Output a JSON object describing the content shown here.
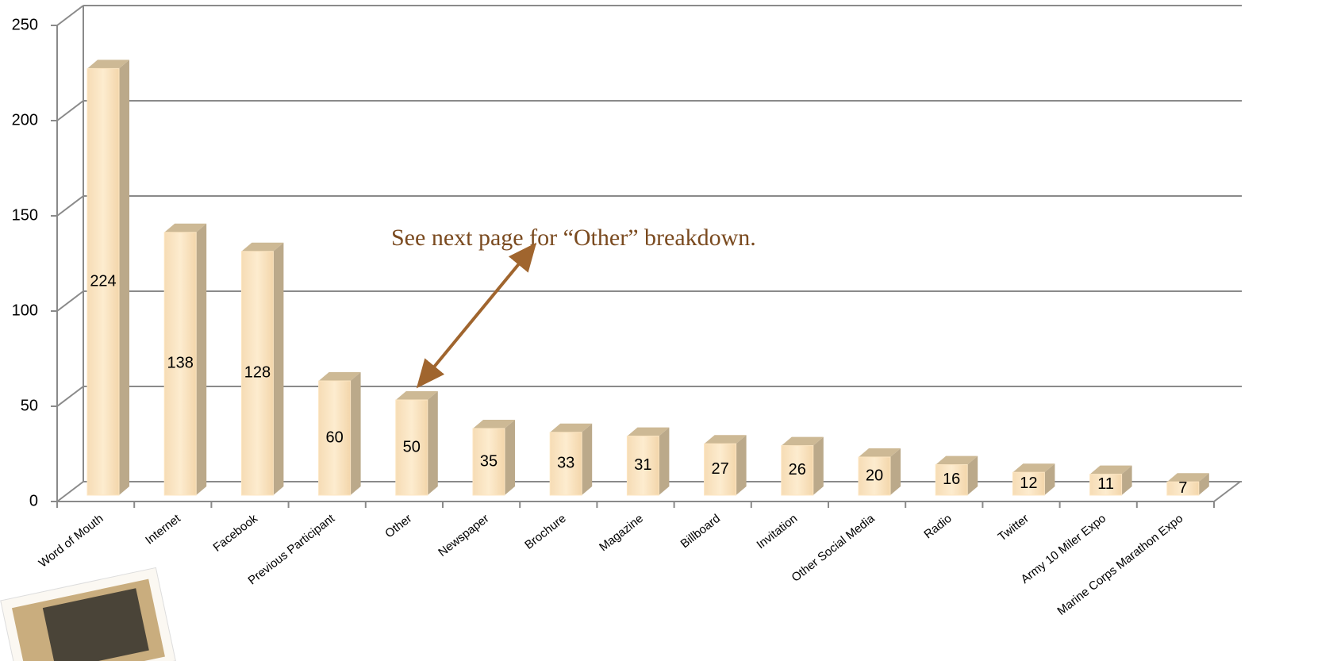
{
  "chart_data": {
    "type": "bar3d",
    "annotation": "See next page for “Other” breakdown.",
    "categories": [
      "Word of Mouth",
      "Internet",
      "Facebook",
      "Previous Participant",
      "Other",
      "Newspaper",
      "Brochure",
      "Magazine",
      "Billboard",
      "Invitation",
      "Other Social Media",
      "Radio",
      "Twitter",
      "Army 10 Miler Expo",
      "Marine Corps Marathon Expo"
    ],
    "values": [
      224,
      138,
      128,
      60,
      50,
      35,
      33,
      31,
      27,
      26,
      20,
      16,
      12,
      11,
      7
    ],
    "color": "#fde6c2",
    "ylim": [
      0,
      250
    ],
    "yticks": [
      0,
      50,
      100,
      150,
      200,
      250
    ],
    "grid": true
  }
}
